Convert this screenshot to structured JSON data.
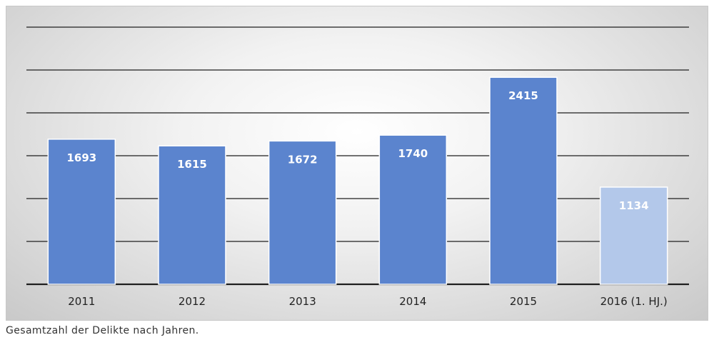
{
  "chart_data": {
    "type": "bar",
    "categories": [
      "2011",
      "2012",
      "2013",
      "2014",
      "2015",
      "2016 (1. HJ.)"
    ],
    "values": [
      1693,
      1615,
      1672,
      1740,
      2415,
      1134
    ],
    "title": "",
    "xlabel": "",
    "ylabel": "",
    "ylim": [
      0,
      3000
    ],
    "grid": true,
    "y_tick_labels_shown": false,
    "colors": {
      "bar": "#5b84ce",
      "bar_partial_year": "#b3c8ea",
      "bar_outline": "#ffffff",
      "gridline": "#1f1f1f"
    }
  },
  "caption": "Gesamtzahl der Delikte nach Jahren."
}
